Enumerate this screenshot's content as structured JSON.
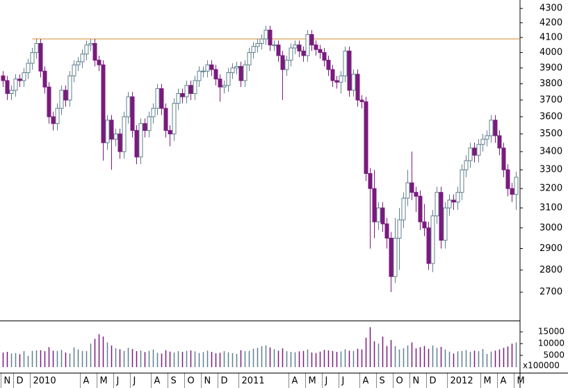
{
  "chart_data": {
    "type": "candlestick",
    "categories": [
      "N",
      null,
      null,
      "D",
      null,
      null,
      null,
      "2010",
      null,
      null,
      null,
      null,
      null,
      null,
      null,
      null,
      null,
      null,
      null,
      "A",
      null,
      null,
      null,
      "M",
      null,
      null,
      null,
      "J",
      null,
      null,
      null,
      "J",
      null,
      null,
      null,
      null,
      "A",
      null,
      null,
      null,
      "S",
      null,
      null,
      null,
      "O",
      null,
      null,
      null,
      "N",
      null,
      null,
      null,
      "D",
      null,
      null,
      null,
      null,
      "2011",
      null,
      null,
      null,
      null,
      null,
      null,
      null,
      null,
      null,
      null,
      null,
      "A",
      null,
      null,
      null,
      "M",
      null,
      null,
      null,
      "J",
      null,
      null,
      null,
      "J",
      null,
      null,
      null,
      null,
      "A",
      null,
      null,
      null,
      "S",
      null,
      null,
      null,
      "O",
      null,
      null,
      null,
      "N",
      null,
      null,
      null,
      "D",
      null,
      null,
      null,
      null,
      "2012",
      null,
      null,
      null,
      null,
      null,
      null,
      null,
      "M",
      null,
      null,
      null,
      "A",
      null,
      null,
      null,
      "M"
    ],
    "open": [
      3850,
      3820,
      3740,
      3760,
      3830,
      3820,
      3870,
      3930,
      4000,
      4060,
      3880,
      3780,
      3600,
      3560,
      3650,
      3760,
      3700,
      3850,
      3920,
      3940,
      3990,
      4050,
      4060,
      3950,
      3920,
      3450,
      3580,
      3470,
      3500,
      3400,
      3600,
      3720,
      3520,
      3370,
      3560,
      3520,
      3600,
      3650,
      3770,
      3650,
      3520,
      3500,
      3680,
      3740,
      3720,
      3790,
      3740,
      3820,
      3880,
      3880,
      3920,
      3890,
      3830,
      3780,
      3790,
      3870,
      3900,
      3910,
      3820,
      3920,
      4000,
      4040,
      4060,
      4090,
      4150,
      4050,
      4050,
      3980,
      3890,
      3950,
      4030,
      4050,
      4010,
      3980,
      4120,
      4050,
      4020,
      4000,
      3950,
      3890,
      3820,
      3810,
      3850,
      4010,
      3760,
      3860,
      3700,
      3690,
      3280,
      3200,
      3030,
      3100,
      3020,
      2950,
      2770,
      2950,
      3040,
      3150,
      3230,
      3180,
      3160,
      3030,
      3000,
      2830,
      3060,
      3180,
      2940,
      3100,
      3140,
      3130,
      3180,
      3300,
      3350,
      3420,
      3380,
      3440,
      3470,
      3490,
      3580,
      3490,
      3420,
      3300,
      3200,
      3170
    ],
    "high": [
      3880,
      3850,
      3790,
      3860,
      3860,
      3900,
      3960,
      4030,
      4090,
      4090,
      3910,
      3810,
      3630,
      3680,
      3790,
      3790,
      3880,
      3950,
      3970,
      4020,
      4080,
      4090,
      4090,
      3980,
      3950,
      3610,
      3610,
      3530,
      3530,
      3630,
      3750,
      3750,
      3550,
      3590,
      3590,
      3630,
      3680,
      3800,
      3800,
      3680,
      3550,
      3710,
      3770,
      3770,
      3820,
      3820,
      3850,
      3910,
      3910,
      3950,
      3950,
      3920,
      3860,
      3820,
      3900,
      3930,
      3940,
      3940,
      3950,
      4030,
      4070,
      4090,
      4120,
      4180,
      4180,
      4080,
      4080,
      4010,
      3980,
      4060,
      4080,
      4080,
      4040,
      4150,
      4150,
      4080,
      4050,
      4030,
      3980,
      3920,
      3850,
      3880,
      4040,
      4040,
      3890,
      3890,
      3730,
      3720,
      3310,
      3300,
      3130,
      3130,
      3050,
      2980,
      3050,
      3100,
      3180,
      3300,
      3400,
      3210,
      3190,
      3120,
      3030,
      3090,
      3210,
      3210,
      3130,
      3170,
      3170,
      3210,
      3330,
      3380,
      3450,
      3450,
      3470,
      3500,
      3520,
      3610,
      3610,
      3520,
      3450,
      3330,
      3230,
      3290
    ],
    "low": [
      3780,
      3700,
      3700,
      3720,
      3780,
      3780,
      3830,
      3890,
      3960,
      3840,
      3740,
      3560,
      3520,
      3520,
      3610,
      3660,
      3660,
      3810,
      3880,
      3900,
      3950,
      4010,
      3910,
      3880,
      3350,
      3410,
      3300,
      3430,
      3360,
      3360,
      3560,
      3480,
      3330,
      3330,
      3480,
      3480,
      3560,
      3610,
      3610,
      3480,
      3430,
      3460,
      3640,
      3680,
      3680,
      3700,
      3700,
      3780,
      3840,
      3840,
      3850,
      3790,
      3690,
      3740,
      3750,
      3830,
      3860,
      3780,
      3780,
      3880,
      3960,
      4000,
      4020,
      4050,
      4010,
      4010,
      3940,
      3700,
      3850,
      3910,
      3990,
      3970,
      3940,
      3940,
      4010,
      3980,
      3960,
      3910,
      3850,
      3780,
      3770,
      3740,
      3810,
      3720,
      3720,
      3660,
      3650,
      3240,
      2900,
      2950,
      2990,
      2980,
      2900,
      2700,
      2740,
      2800,
      3000,
      3110,
      3140,
      3080,
      2990,
      2960,
      2800,
      2790,
      3020,
      2900,
      2900,
      3060,
      3090,
      3090,
      3140,
      3260,
      3310,
      3340,
      3340,
      3400,
      3430,
      3450,
      3450,
      3380,
      3260,
      3160,
      3130,
      3090
    ],
    "close": [
      3820,
      3740,
      3760,
      3830,
      3820,
      3870,
      3930,
      4000,
      4060,
      3880,
      3780,
      3600,
      3560,
      3650,
      3760,
      3700,
      3850,
      3920,
      3940,
      3990,
      4050,
      4060,
      3950,
      3920,
      3450,
      3580,
      3470,
      3500,
      3400,
      3600,
      3720,
      3520,
      3370,
      3560,
      3520,
      3600,
      3650,
      3770,
      3650,
      3520,
      3500,
      3680,
      3740,
      3720,
      3790,
      3740,
      3820,
      3880,
      3880,
      3920,
      3890,
      3830,
      3780,
      3790,
      3870,
      3900,
      3910,
      3820,
      3920,
      4000,
      4040,
      4060,
      4090,
      4150,
      4050,
      4050,
      3980,
      3890,
      3950,
      4030,
      4050,
      4010,
      3980,
      4120,
      4050,
      4020,
      4000,
      3950,
      3890,
      3820,
      3810,
      3850,
      4010,
      3760,
      3860,
      3700,
      3690,
      3280,
      3200,
      3030,
      3100,
      3020,
      2950,
      2770,
      2950,
      3040,
      3150,
      3230,
      3180,
      3160,
      3030,
      3000,
      2830,
      3060,
      3180,
      2940,
      3100,
      3140,
      3130,
      3180,
      3300,
      3350,
      3420,
      3380,
      3440,
      3470,
      3490,
      3580,
      3490,
      3420,
      3300,
      3200,
      3170,
      3260
    ],
    "up_color": "#5f7f8c",
    "down_color": "#7a1a7e",
    "log_scale": true,
    "ylim": [
      2580,
      4360
    ],
    "yticks": [
      2700,
      2800,
      2900,
      3000,
      3100,
      3200,
      3300,
      3400,
      3500,
      3600,
      3700,
      3800,
      3900,
      4000,
      4100,
      4200,
      4300
    ],
    "reference_line": {
      "value": 4090,
      "color": "#d08a2a"
    },
    "volume": {
      "values": [
        6200,
        6500,
        5800,
        6000,
        5500,
        6800,
        4800,
        6900,
        7100,
        7200,
        6800,
        8500,
        7000,
        6900,
        7300,
        6200,
        5800,
        8400,
        7500,
        6900,
        6800,
        10000,
        12000,
        14000,
        13000,
        10500,
        9200,
        8100,
        7600,
        6900,
        8200,
        7700,
        6800,
        7100,
        6400,
        6900,
        7500,
        6100,
        5800,
        7200,
        6600,
        6200,
        6800,
        6500,
        6900,
        7100,
        6700,
        6000,
        6400,
        7000,
        6500,
        5900,
        6100,
        6800,
        6300,
        6000,
        5600,
        7200,
        6800,
        6900,
        7800,
        8200,
        8900,
        9200,
        8400,
        7600,
        7000,
        8000,
        6800,
        6500,
        6300,
        6700,
        6900,
        7500,
        6200,
        6000,
        6600,
        7300,
        7100,
        6900,
        6500,
        6700,
        7600,
        7000,
        6900,
        7800,
        7500,
        12500,
        17000,
        11000,
        10000,
        13000,
        9000,
        11500,
        9000,
        7500,
        8000,
        9200,
        10500,
        8000,
        8500,
        9000,
        7800,
        9200,
        8200,
        8600,
        7500,
        6600,
        5800,
        6700,
        6900,
        7200,
        6500,
        7000,
        6800,
        7700,
        5600,
        6600,
        7000,
        7500,
        8200,
        8800,
        10000,
        10500
      ],
      "ylim": [
        0,
        19500
      ],
      "yticks": [
        5000,
        10000,
        15000
      ],
      "unit_label": "x100000"
    }
  }
}
